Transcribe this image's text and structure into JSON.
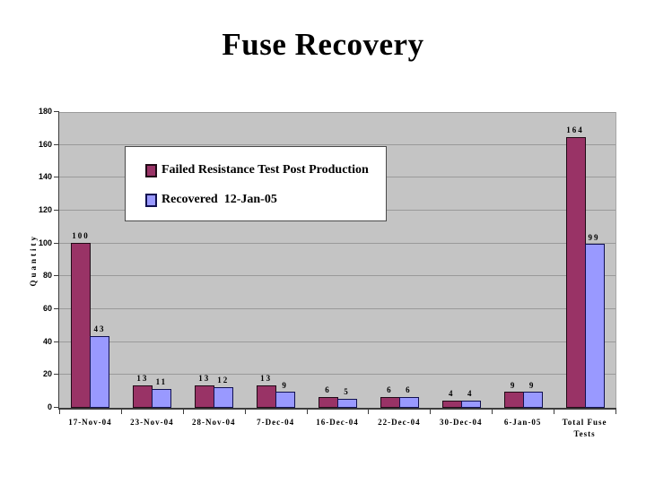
{
  "slide": {
    "title": "Fuse Recovery"
  },
  "chart_data": {
    "type": "bar",
    "title": "Fuse Recovery",
    "xlabel": "",
    "ylabel": "Quantity",
    "categories": [
      "17-Nov-04",
      "23-Nov-04",
      "28-Nov-04",
      "7-Dec-04",
      "16-Dec-04",
      "22-Dec-04",
      "30-Dec-04",
      "6-Jan-05",
      "Total Fuse Tests"
    ],
    "series": [
      {
        "name": "Failed Resistance Test Post Production",
        "color": "#993366",
        "border_color": "#200a16",
        "values": [
          100,
          13,
          13,
          13,
          6,
          6,
          4,
          9,
          164
        ]
      },
      {
        "name": "Recovered  12-Jan-05",
        "color": "#9999ff",
        "border_color": "#101050",
        "values": [
          43,
          11,
          12,
          9,
          5,
          6,
          4,
          9,
          99
        ]
      }
    ],
    "ylim": [
      0,
      180
    ],
    "ytick_step": 20,
    "grid": true,
    "data_labels": true,
    "legend_position": "inside-top-left",
    "plot_bg_color": "#c4c4c4",
    "gridline_color": "#9a9a9a"
  }
}
